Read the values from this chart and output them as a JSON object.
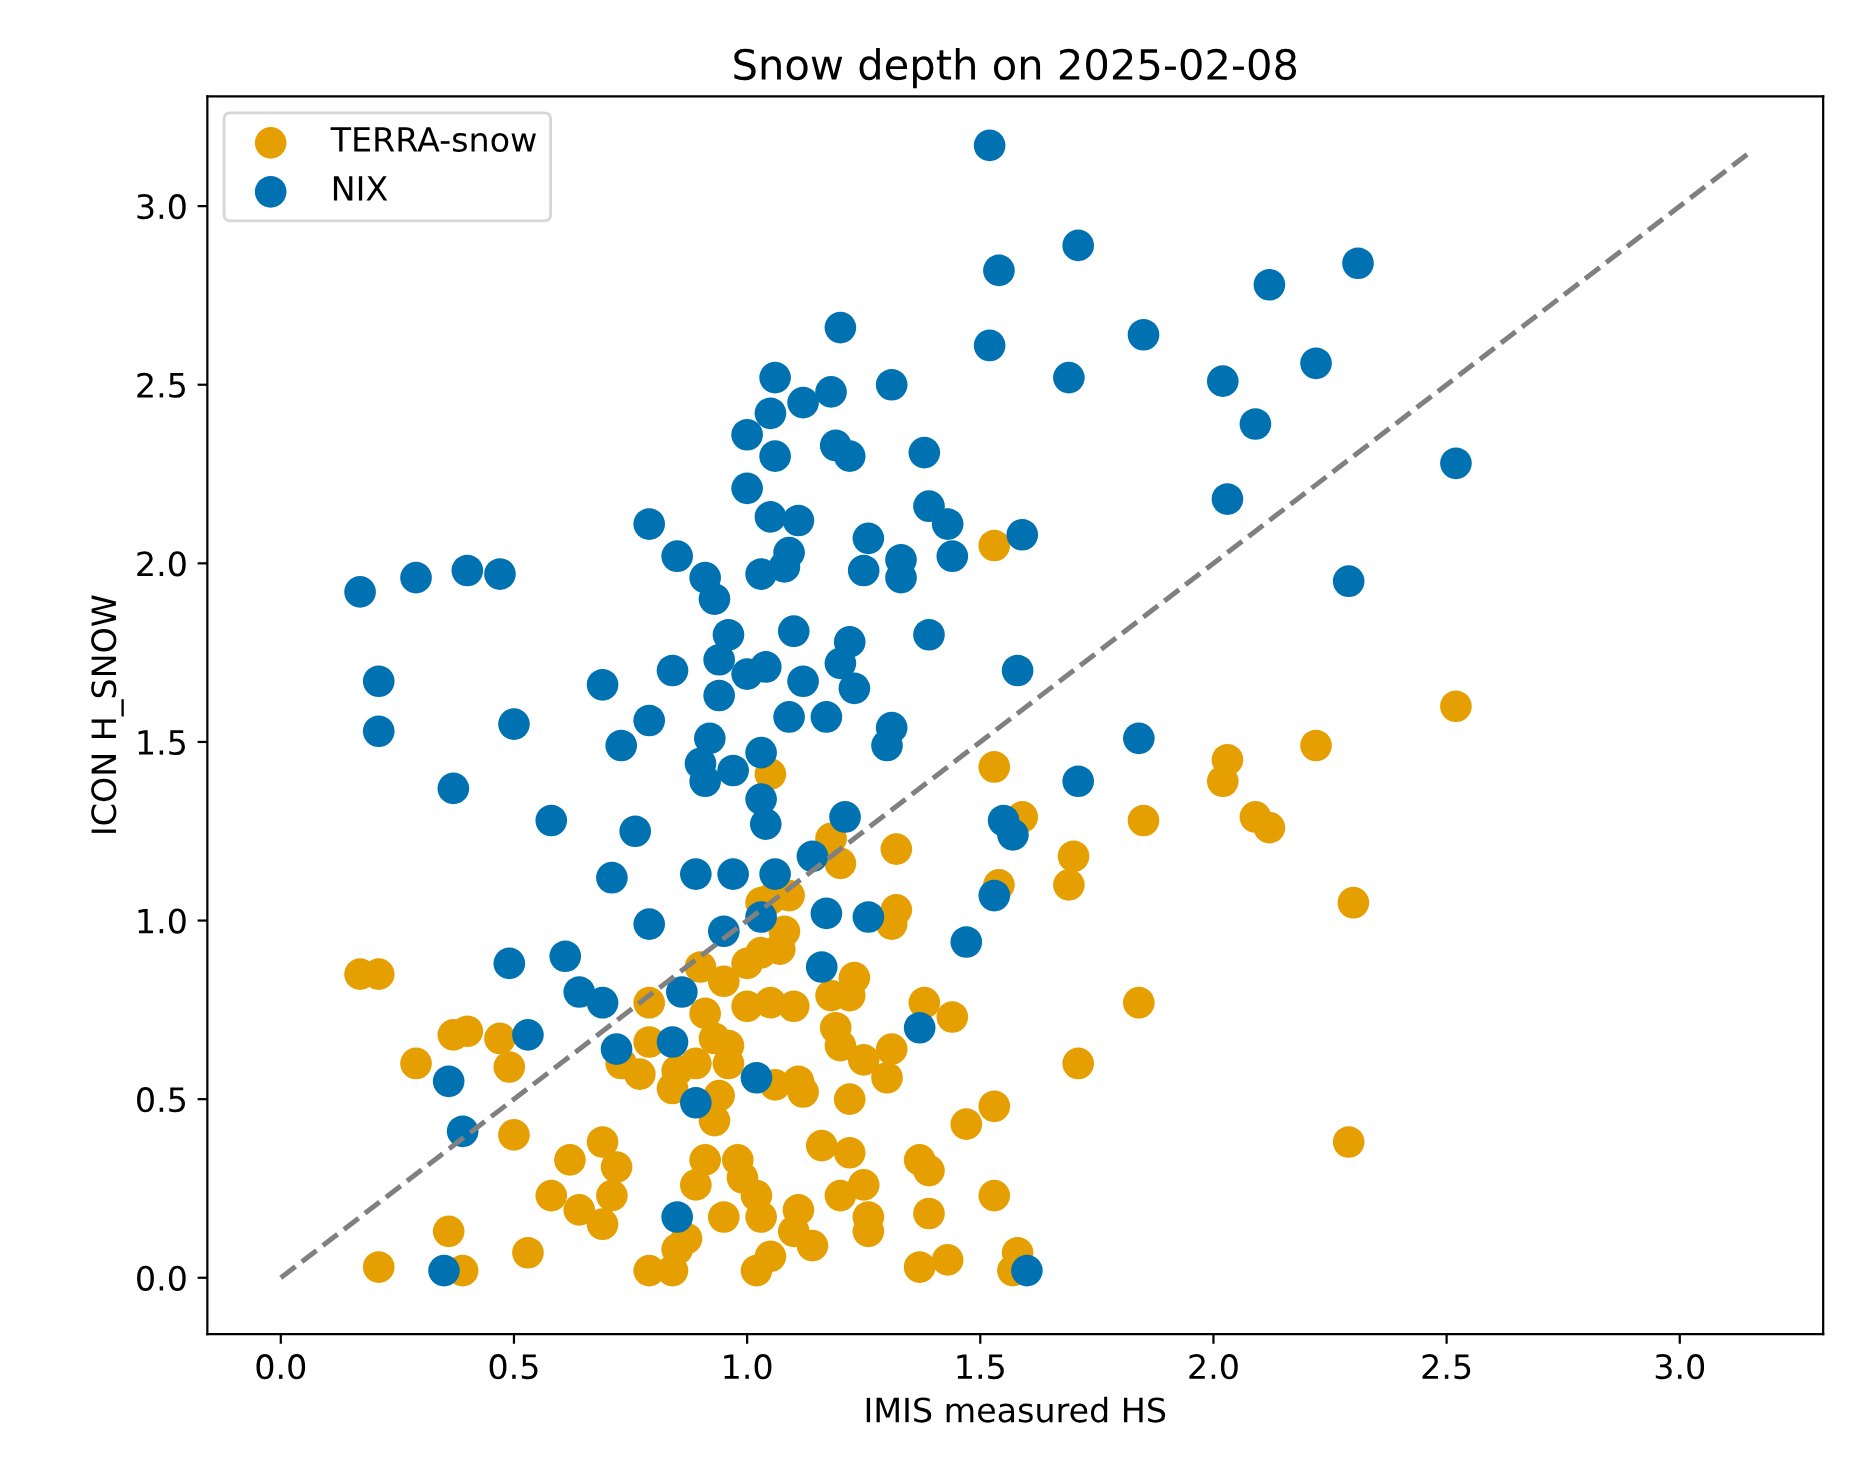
{
  "chart_data": {
    "type": "scatter",
    "title": "Snow depth on 2025-02-08",
    "xlabel": "IMIS measured HS",
    "ylabel": "ICON H_SNOW",
    "xlim": [
      -0.1575,
      3.3075
    ],
    "ylim": [
      -0.1575,
      3.3075
    ],
    "xticks": [
      {
        "value": 0,
        "label": "0.0"
      },
      {
        "value": 0.5,
        "label": "0.5"
      },
      {
        "value": 1,
        "label": "1.0"
      },
      {
        "value": 1.5,
        "label": "1.5"
      },
      {
        "value": 2,
        "label": "2.0"
      },
      {
        "value": 2.5,
        "label": "2.5"
      },
      {
        "value": 3,
        "label": "3.0"
      }
    ],
    "yticks": [
      {
        "value": 0,
        "label": "0.0"
      },
      {
        "value": 0.5,
        "label": "0.5"
      },
      {
        "value": 1,
        "label": "1.0"
      },
      {
        "value": 1.5,
        "label": "1.5"
      },
      {
        "value": 2,
        "label": "2.0"
      },
      {
        "value": 2.5,
        "label": "2.5"
      },
      {
        "value": 3,
        "label": "3.0"
      }
    ],
    "legend": "top left",
    "marker": "circle",
    "series": [
      {
        "name": "TERRA-snow",
        "color": "#e69f00",
        "x": [
          1.53,
          2.52,
          0.17,
          0.21,
          0.37,
          0.4,
          0.47,
          0.29,
          0.49,
          0.5,
          0.36,
          0.21,
          0.39,
          0.53,
          0.62,
          0.69,
          0.72,
          0.71,
          0.58,
          0.64,
          0.69,
          0.79,
          0.79,
          0.77,
          0.73,
          0.79,
          0.84,
          0.85,
          0.87,
          0.89,
          0.91,
          0.95,
          0.98,
          0.99,
          1.02,
          1.03,
          1.02,
          1.05,
          1.11,
          1.1,
          1.14,
          1.16,
          1.22,
          1.2,
          1.25,
          1.26,
          1.26,
          1.37,
          1.43,
          1.39,
          1.37,
          1.39,
          1.53,
          1.47,
          1.53,
          1.22,
          1.3,
          1.31,
          1.25,
          1.2,
          1.19,
          1.23,
          1.22,
          1.18,
          1.38,
          1.44,
          1.06,
          1.11,
          1.12,
          0.94,
          0.93,
          0.84,
          0.85,
          0.89,
          0.96,
          0.93,
          0.91,
          0.9,
          0.95,
          1.0,
          1.03,
          1.07,
          1.08,
          1.0,
          1.05,
          1.1,
          0.96,
          1.05,
          1.09,
          1.03,
          1.05,
          1.18,
          1.2,
          1.32,
          1.32,
          1.31,
          1.53,
          1.54,
          1.59,
          2.03,
          2.02,
          2.22,
          1.85,
          2.09,
          2.12,
          1.7,
          1.69,
          2.3,
          1.84,
          1.71,
          2.29,
          1.58,
          1.57
        ],
        "values": [
          2.05,
          1.6,
          0.85,
          0.85,
          0.68,
          0.69,
          0.67,
          0.6,
          0.59,
          0.4,
          0.13,
          0.03,
          0.02,
          0.07,
          0.33,
          0.38,
          0.31,
          0.23,
          0.23,
          0.19,
          0.15,
          0.77,
          0.66,
          0.57,
          0.6,
          0.02,
          0.02,
          0.08,
          0.11,
          0.26,
          0.33,
          0.17,
          0.33,
          0.28,
          0.23,
          0.17,
          0.02,
          0.06,
          0.19,
          0.13,
          0.09,
          0.37,
          0.35,
          0.23,
          0.26,
          0.17,
          0.13,
          0.03,
          0.05,
          0.18,
          0.33,
          0.3,
          0.23,
          0.43,
          0.48,
          0.5,
          0.56,
          0.64,
          0.61,
          0.65,
          0.7,
          0.84,
          0.79,
          0.79,
          0.77,
          0.73,
          0.54,
          0.55,
          0.52,
          0.51,
          0.44,
          0.53,
          0.58,
          0.6,
          0.65,
          0.67,
          0.74,
          0.87,
          0.83,
          0.88,
          0.91,
          0.92,
          0.97,
          0.76,
          0.77,
          0.76,
          0.6,
          1.06,
          1.07,
          1.05,
          1.41,
          1.23,
          1.16,
          1.2,
          1.03,
          0.99,
          1.43,
          1.1,
          1.29,
          1.45,
          1.39,
          1.49,
          1.28,
          1.29,
          1.26,
          1.18,
          1.1,
          1.05,
          0.77,
          0.6,
          0.38,
          0.07,
          0.02
        ]
      },
      {
        "name": "NIX",
        "color": "#0072b2",
        "x": [
          1.52,
          1.54,
          1.52,
          1.2,
          1.06,
          1.18,
          1.12,
          1.31,
          1.05,
          1.0,
          1.06,
          1.19,
          1.22,
          1.38,
          1.0,
          1.05,
          1.11,
          1.39,
          1.43,
          1.44,
          1.26,
          1.25,
          1.33,
          1.33,
          1.09,
          1.08,
          1.03,
          0.79,
          0.85,
          0.91,
          0.93,
          0.17,
          0.29,
          0.4,
          0.47,
          0.21,
          0.69,
          0.84,
          0.96,
          0.94,
          1.0,
          1.04,
          1.1,
          1.12,
          1.22,
          1.2,
          1.23,
          1.39,
          0.94,
          0.21,
          0.5,
          0.79,
          0.73,
          1.09,
          1.17,
          1.31,
          1.3,
          0.92,
          0.9,
          0.91,
          0.97,
          1.03,
          1.03,
          1.04,
          0.37,
          0.58,
          0.76,
          0.71,
          0.89,
          0.97,
          1.06,
          1.21,
          1.14,
          1.03,
          1.17,
          1.26,
          1.53,
          1.47,
          1.16,
          0.95,
          0.79,
          0.49,
          0.61,
          0.64,
          0.69,
          0.86,
          0.53,
          0.72,
          0.84,
          1.37,
          0.36,
          0.39,
          1.02,
          0.89,
          0.85,
          0.35,
          1.71,
          1.85,
          1.69,
          2.12,
          2.31,
          2.02,
          2.22,
          2.09,
          2.52,
          2.03,
          2.29,
          1.59,
          1.58,
          1.84,
          1.71,
          1.55,
          1.57,
          1.6
        ],
        "values": [
          3.17,
          2.82,
          2.61,
          2.66,
          2.52,
          2.48,
          2.45,
          2.5,
          2.42,
          2.36,
          2.3,
          2.33,
          2.3,
          2.31,
          2.21,
          2.13,
          2.12,
          2.16,
          2.11,
          2.02,
          2.07,
          1.98,
          2.01,
          1.96,
          2.03,
          1.99,
          1.97,
          2.11,
          2.02,
          1.96,
          1.9,
          1.92,
          1.96,
          1.98,
          1.97,
          1.67,
          1.66,
          1.7,
          1.8,
          1.73,
          1.69,
          1.71,
          1.81,
          1.67,
          1.78,
          1.72,
          1.65,
          1.8,
          1.63,
          1.53,
          1.55,
          1.56,
          1.49,
          1.57,
          1.57,
          1.54,
          1.49,
          1.51,
          1.44,
          1.39,
          1.42,
          1.47,
          1.34,
          1.27,
          1.37,
          1.28,
          1.25,
          1.12,
          1.13,
          1.13,
          1.13,
          1.29,
          1.18,
          1.01,
          1.02,
          1.01,
          1.07,
          0.94,
          0.87,
          0.97,
          0.99,
          0.88,
          0.9,
          0.8,
          0.77,
          0.8,
          0.68,
          0.64,
          0.66,
          0.7,
          0.55,
          0.41,
          0.56,
          0.49,
          0.17,
          0.02,
          2.89,
          2.64,
          2.52,
          2.78,
          2.84,
          2.51,
          2.56,
          2.39,
          2.28,
          2.18,
          1.95,
          2.08,
          1.7,
          1.51,
          1.39,
          1.28,
          1.24,
          0.02
        ]
      },
      {
        "type": "line",
        "color": "#808080",
        "line_style": "dashed",
        "marker": "none",
        "x": [
          0,
          3.15
        ],
        "values": [
          0,
          3.15
        ]
      }
    ]
  }
}
